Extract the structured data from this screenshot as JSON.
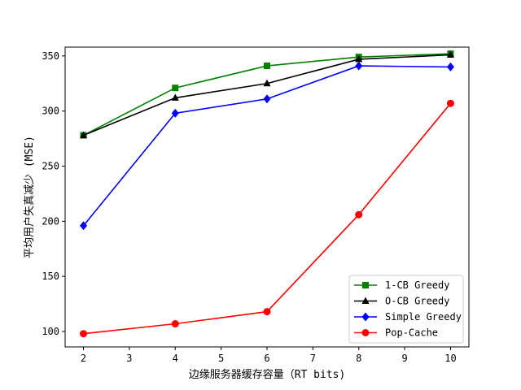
{
  "chart_data": {
    "type": "line",
    "title": "",
    "xlabel": "边缘服务器缓存容量（RT bits)",
    "ylabel": "平均用户失真减少 (MSE)",
    "xlim": [
      1.6,
      10.4
    ],
    "ylim": [
      86,
      358
    ],
    "xticks": [
      2,
      3,
      4,
      5,
      6,
      7,
      8,
      9,
      10
    ],
    "yticks": [
      100,
      150,
      200,
      250,
      300,
      350
    ],
    "grid": false,
    "legend_position": "lower-right",
    "x": [
      2,
      4,
      6,
      8,
      10
    ],
    "series": [
      {
        "name": "1-CB Greedy",
        "color": "#008000",
        "marker": "square",
        "values": [
          278,
          321,
          341,
          349,
          352
        ]
      },
      {
        "name": "O-CB Greedy",
        "color": "#000000",
        "marker": "triangle",
        "values": [
          278,
          312,
          325,
          347,
          351
        ]
      },
      {
        "name": "Simple Greedy",
        "color": "#0000ff",
        "marker": "diamond",
        "values": [
          196,
          298,
          311,
          341,
          340
        ]
      },
      {
        "name": "Pop-Cache",
        "color": "#ff0000",
        "marker": "circle",
        "values": [
          98,
          107,
          118,
          206,
          307
        ]
      }
    ]
  }
}
